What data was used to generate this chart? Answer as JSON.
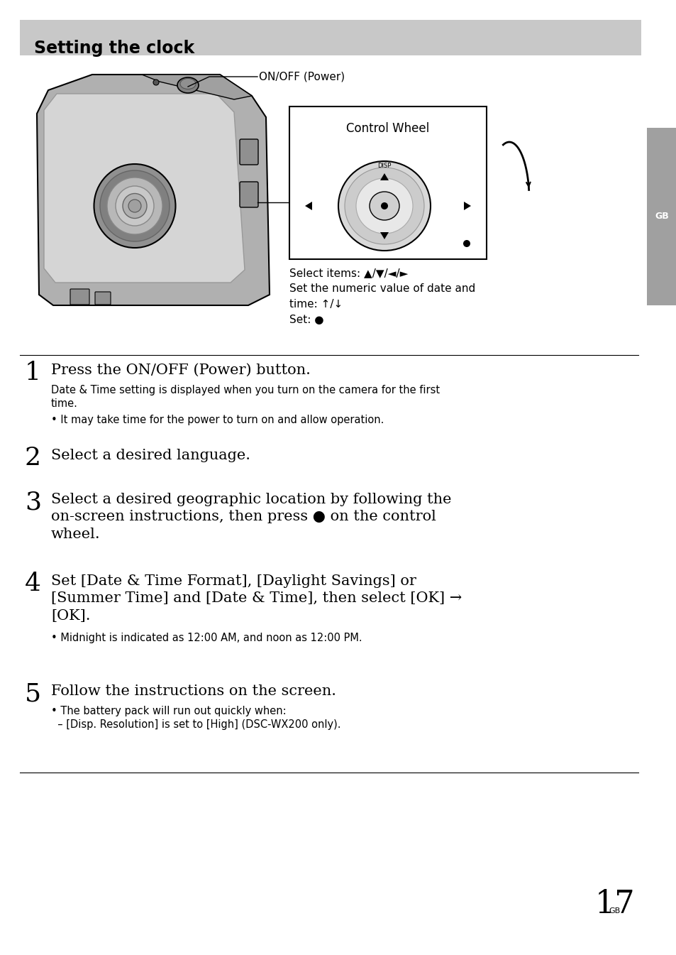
{
  "title": "Setting the clock",
  "title_bg": "#c8c8c8",
  "page_bg": "#ffffff",
  "sidebar_color": "#a0a0a0",
  "gb_sidebar_label": "GB",
  "page_number_small": "GB",
  "page_number": "17",
  "diagram_label_power": "ON/OFF (Power)",
  "diagram_label_wheel": "Control Wheel",
  "diagram_label_disp": "DISP",
  "diagram_caption1": "Select items: ▲/▼/◄/►",
  "diagram_caption2": "Set the numeric value of date and",
  "diagram_caption3": "time: ↑/↓",
  "diagram_caption4": "Set: ●",
  "steps": [
    {
      "number": "1",
      "heading": "Press the ON/OFF (Power) button.",
      "body_lines": [
        "Date & Time setting is displayed when you turn on the camera for the first",
        "time."
      ],
      "bullets": [
        "• It may take time for the power to turn on and allow operation."
      ]
    },
    {
      "number": "2",
      "heading": "Select a desired language.",
      "body_lines": [],
      "bullets": []
    },
    {
      "number": "3",
      "heading": "Select a desired geographic location by following the\non-screen instructions, then press ● on the control\nwheel.",
      "body_lines": [],
      "bullets": []
    },
    {
      "number": "4",
      "heading": "Set [Date & Time Format], [Daylight Savings] or\n[Summer Time] and [Date & Time], then select [OK] →\n[OK].",
      "body_lines": [],
      "bullets": [
        "• Midnight is indicated as 12:00 AM, and noon as 12:00 PM."
      ]
    },
    {
      "number": "5",
      "heading": "Follow the instructions on the screen.",
      "body_lines": [],
      "bullets": [
        "• The battery pack will run out quickly when:",
        "  – [Disp. Resolution] is set to [High] (DSC-WX200 only)."
      ]
    }
  ]
}
